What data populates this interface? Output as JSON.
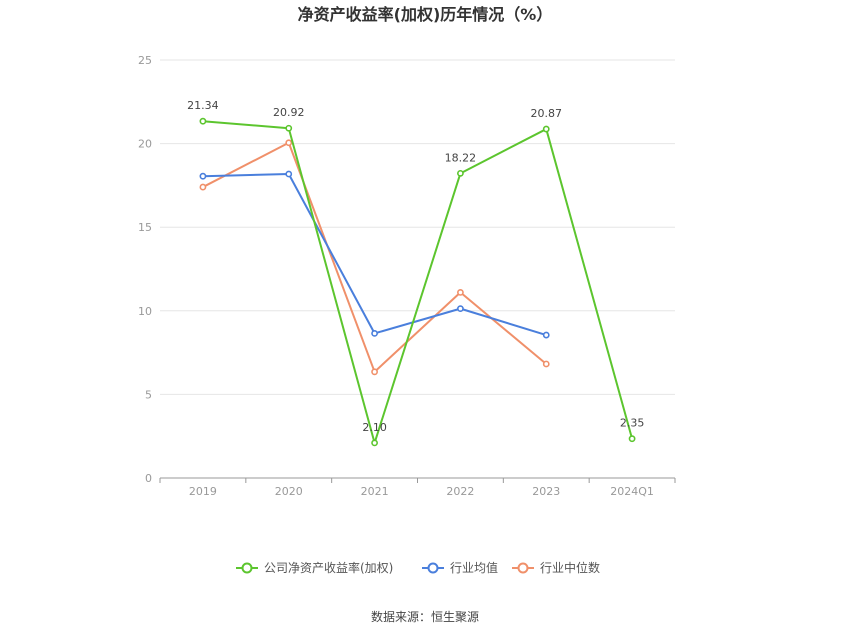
{
  "chart_data": {
    "type": "line",
    "title": "净资产收益率(加权)历年情况（%）",
    "categories": [
      "2019",
      "2020",
      "2021",
      "2022",
      "2023",
      "2024Q1"
    ],
    "ylim": [
      0,
      25
    ],
    "yticks": [
      0,
      5,
      10,
      15,
      20,
      25
    ],
    "grid": true,
    "legend_position": "bottom",
    "series": [
      {
        "name": "公司净资产收益率(加权)",
        "color": "#5cc52e",
        "values": [
          21.34,
          20.92,
          2.1,
          18.22,
          20.87,
          2.35
        ],
        "labels": [
          "21.34",
          "20.92",
          "2.10",
          "18.22",
          "20.87",
          "2.35"
        ]
      },
      {
        "name": "行业均值",
        "color": "#4a7fdc",
        "values": [
          18.05,
          18.18,
          8.65,
          10.13,
          8.55,
          null
        ]
      },
      {
        "name": "行业中位数",
        "color": "#f0906a",
        "values": [
          17.4,
          20.05,
          6.35,
          11.1,
          6.82,
          null
        ]
      }
    ],
    "source": "数据来源：恒生聚源"
  }
}
